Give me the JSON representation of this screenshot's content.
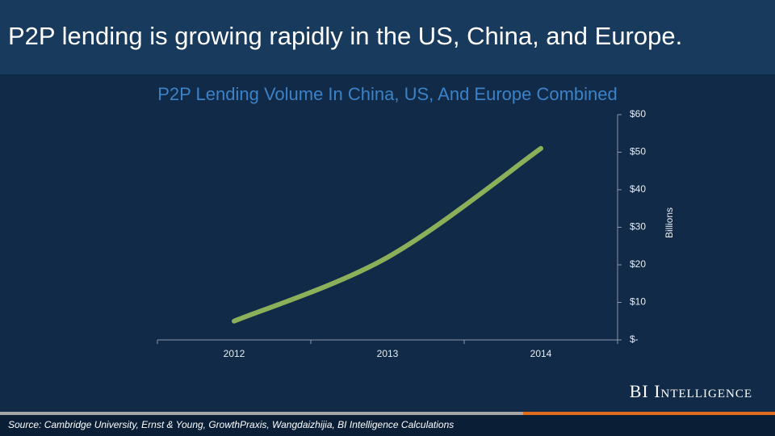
{
  "title": "P2P lending is growing rapidly in the US, China, and Europe.",
  "brand": "BI Intelligence",
  "source": "Source: Cambridge University, Ernst & Young, GrowthPraxis, Wangdaizhijia, BI Intelligence Calculations",
  "chart_data": {
    "type": "line",
    "title": "P2P Lending Volume In China, US, And Europe Combined",
    "y_label": "Billions",
    "categories": [
      "2012",
      "2013",
      "2014"
    ],
    "values": [
      5,
      22,
      51
    ],
    "color": "#8cb05a",
    "ylim": [
      0,
      60
    ],
    "yticks": [
      {
        "value": 0,
        "label": "$-"
      },
      {
        "value": 10,
        "label": "$10"
      },
      {
        "value": 20,
        "label": "$20"
      },
      {
        "value": 30,
        "label": "$30"
      },
      {
        "value": 40,
        "label": "$40"
      },
      {
        "value": 50,
        "label": "$50"
      },
      {
        "value": 60,
        "label": "$60"
      }
    ],
    "y_axis_side": "right",
    "grid": false
  }
}
